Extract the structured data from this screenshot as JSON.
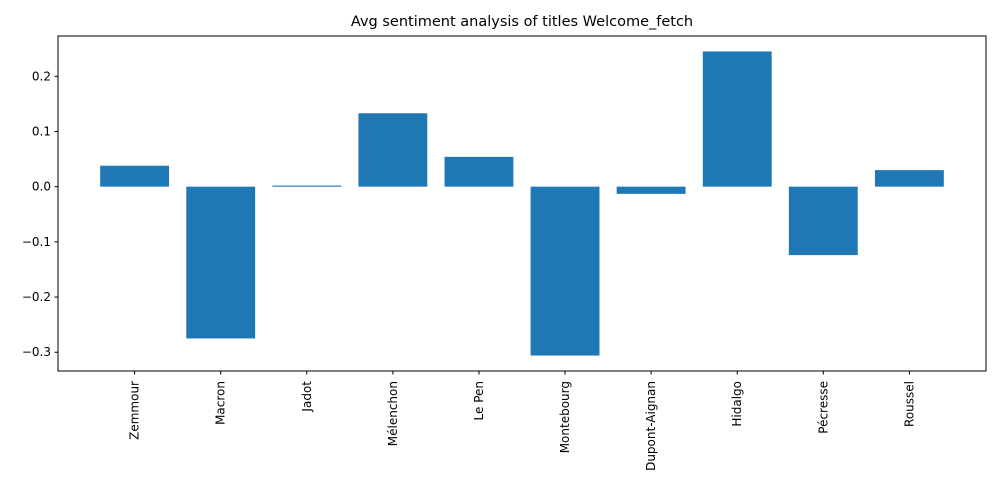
{
  "chart_data": {
    "type": "bar",
    "title": "Avg sentiment analysis of titles Welcome_fetch",
    "xlabel": "",
    "ylabel": "",
    "categories": [
      "Zemmour",
      "Macron",
      "Jadot",
      "Mélenchon",
      "Le Pen",
      "Montebourg",
      "Dupont-Aignan",
      "Hidalgo",
      "Pécresse",
      "Roussel"
    ],
    "values": [
      0.038,
      -0.275,
      0.002,
      0.133,
      0.054,
      -0.306,
      -0.013,
      0.245,
      -0.124,
      0.03
    ],
    "ylim": [
      -0.334,
      0.273
    ],
    "yticks": [
      -0.3,
      -0.2,
      -0.1,
      0.0,
      0.1,
      0.2
    ],
    "ytick_labels": [
      "−0.3",
      "−0.2",
      "−0.1",
      "0.0",
      "0.1",
      "0.2"
    ],
    "bar_color": "#1f77b4",
    "grid": false,
    "legend": "none"
  }
}
